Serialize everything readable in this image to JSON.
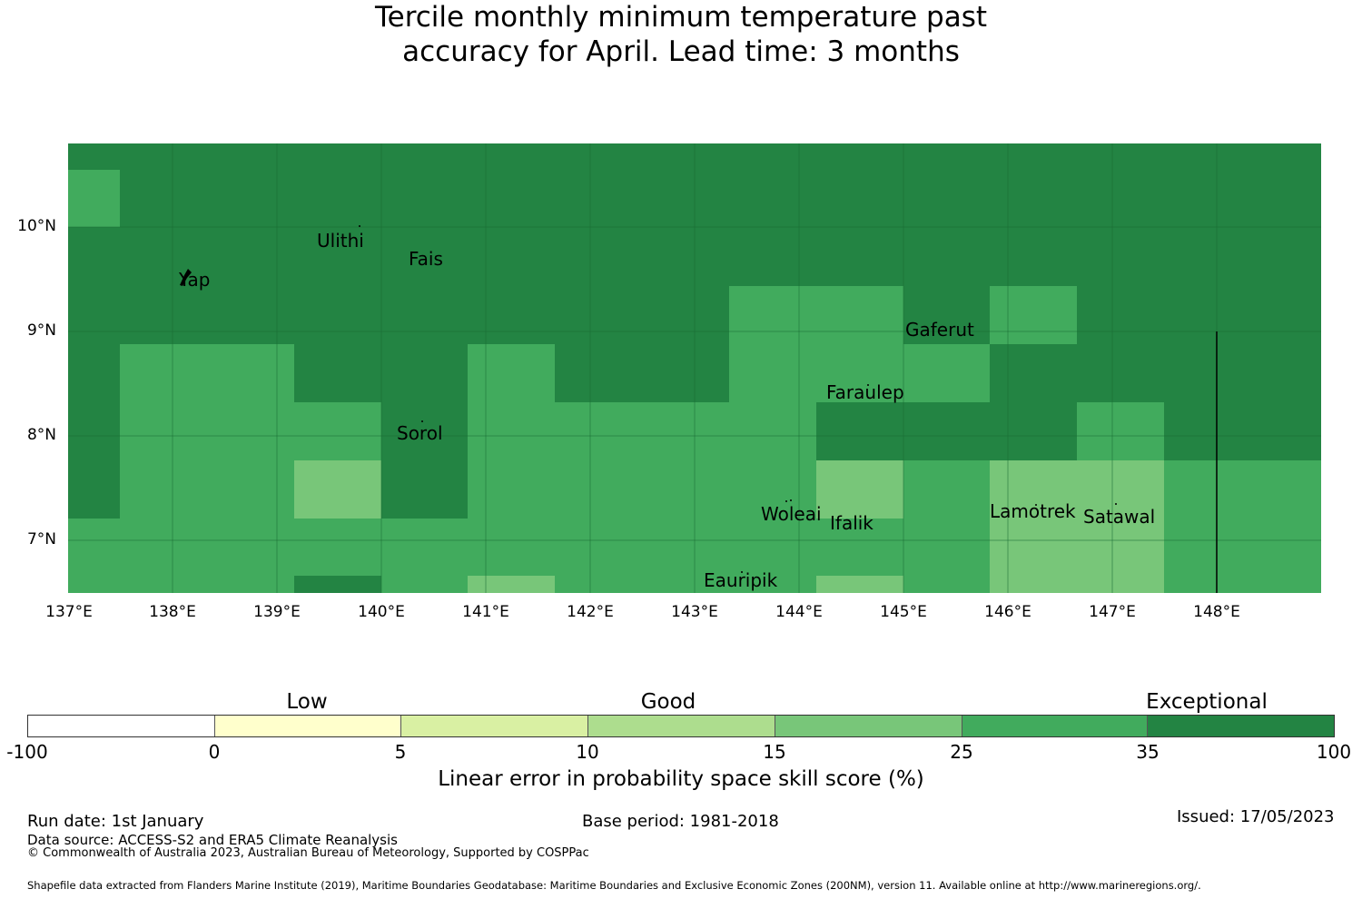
{
  "title": {
    "line1": "Tercile monthly minimum temperature past",
    "line2": "accuracy for April. Lead time: 3 months"
  },
  "map": {
    "lon_range": [
      137,
      149
    ],
    "lat_range": [
      6.5,
      10.8
    ],
    "lat_ticks": [
      "10°N",
      "9°N",
      "8°N",
      "7°N"
    ],
    "lon_ticks": [
      "137°E",
      "138°E",
      "139°E",
      "140°E",
      "141°E",
      "142°E",
      "143°E",
      "144°E",
      "145°E",
      "146°E",
      "147°E",
      "148°E"
    ],
    "colors": {
      "exceptional": "#238443",
      "good_high": "#41ab5d",
      "good_mid": "#78c679"
    },
    "places": [
      {
        "name": "Yap"
      },
      {
        "name": "Ulithi"
      },
      {
        "name": "Fais"
      },
      {
        "name": "Gaferut"
      },
      {
        "name": "Faraulep"
      },
      {
        "name": "Sorol"
      },
      {
        "name": "Woleai"
      },
      {
        "name": "Ifalik"
      },
      {
        "name": "Lamotrek"
      },
      {
        "name": "Satawal"
      },
      {
        "name": "Eauripik"
      }
    ]
  },
  "colorbar": {
    "category_labels": [
      "Low",
      "Good",
      "Exceptional"
    ],
    "ticks": [
      "-100",
      "0",
      "5",
      "10",
      "15",
      "25",
      "35",
      "100"
    ],
    "colors": [
      "#ffffff",
      "#ffffcc",
      "#d9f0a3",
      "#addd8e",
      "#78c679",
      "#41ab5d",
      "#238443"
    ],
    "label": "Linear error in probability space skill score (%)"
  },
  "footer": {
    "run_date": "Run date: 1st January",
    "base_period": "Base period: 1981-2018",
    "issued": "Issued: 17/05/2023",
    "data_source": "Data source: ACCESS-S2 and ERA5 Climate Reanalysis",
    "copyright": "© Commonwealth of Australia 2023, Australian Bureau of Meteorology, Supported by COSPPac",
    "shapefile": "Shapefile data extracted from Flanders Marine Institute (2019), Maritime Boundaries Geodatabase: Maritime Boundaries and Exclusive Economic Zones (200NM), version 11. Available online at http://www.marineregions.org/."
  }
}
